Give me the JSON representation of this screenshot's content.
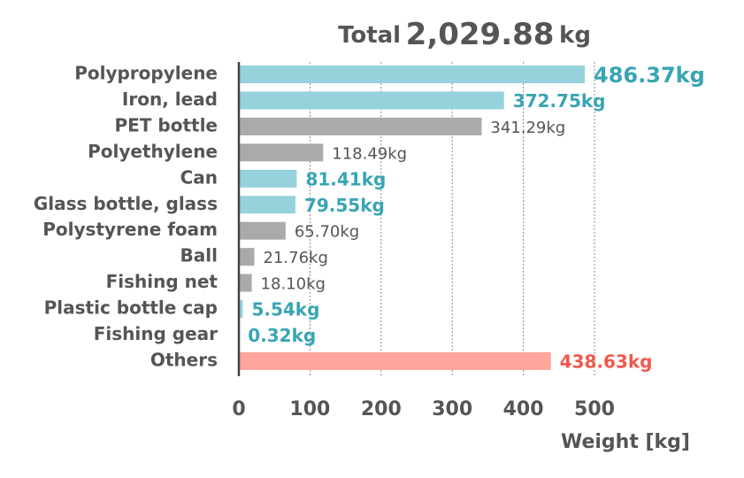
{
  "chart_data": {
    "type": "bar",
    "orientation": "horizontal",
    "title": [
      "Total",
      "2,029.88",
      "kg"
    ],
    "x_label": "Weight [kg]",
    "categories": [
      "Polypropylene",
      "Iron, lead",
      "PET bottle",
      "Polyethylene",
      "Can",
      "Glass bottle, glass",
      "Polystyrene foam",
      "Ball",
      "Fishing net",
      "Plastic bottle cap",
      "Fishing gear",
      "Others"
    ],
    "values": [
      486.37,
      372.75,
      341.29,
      118.49,
      81.41,
      79.55,
      65.7,
      21.76,
      18.1,
      5.54,
      0.32,
      438.63
    ],
    "value_labels": [
      "486.37kg",
      "372.75kg",
      "341.29kg",
      "118.49kg",
      "81.41kg",
      "79.55kg",
      "65.70kg",
      "21.76kg",
      "18.10kg",
      "5.54kg",
      "0.32kg",
      "438.63kg"
    ],
    "colors": [
      "#96d2dc",
      "#96d2dc",
      "#aaaaaa",
      "#aaaaaa",
      "#96d2dc",
      "#96d2dc",
      "#aaaaaa",
      "#aaaaaa",
      "#aaaaaa",
      "#96d2dc",
      "#96d2dc",
      "#ffa59b"
    ],
    "label_colors": [
      "#37a5b4",
      "#37a5b4",
      "#555555",
      "#555555",
      "#37a5b4",
      "#37a5b4",
      "#555555",
      "#555555",
      "#555555",
      "#37a5b4",
      "#37a5b4",
      "#f05a4b"
    ],
    "xlim": [
      0,
      500
    ],
    "xticks": [
      0,
      100,
      200,
      300,
      400,
      500
    ],
    "grid": true
  }
}
